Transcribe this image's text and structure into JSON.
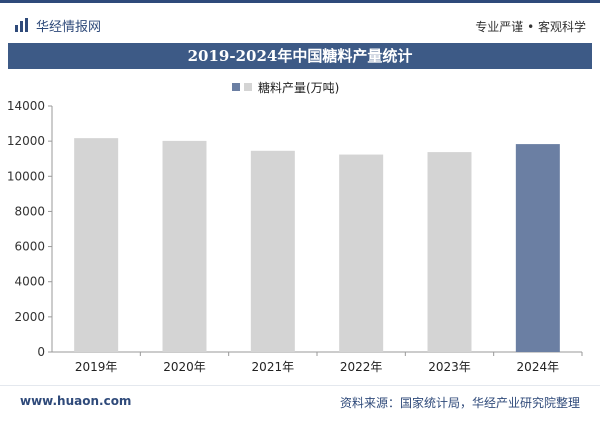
{
  "header": {
    "brand_name": "华经情报网",
    "tagline": "专业严谨 • 客观科学"
  },
  "colors": {
    "brand": "#2f4a7a",
    "bar_default": "#d4d4d4",
    "bar_highlight": "#6b7fa3"
  },
  "chart_data": {
    "type": "bar",
    "title": "2019-2024年中国糖料产量统计",
    "xlabel": "",
    "ylabel": "",
    "categories": [
      "2019年",
      "2020年",
      "2021年",
      "2022年",
      "2023年",
      "2024年"
    ],
    "series": [
      {
        "name": "糖料产量(万吨)",
        "values": [
          12170,
          12014,
          11451,
          11237,
          11376,
          11832
        ]
      }
    ],
    "highlight_index": 5,
    "ylim": [
      0,
      14000
    ],
    "yticks": [
      0,
      2000,
      4000,
      6000,
      8000,
      10000,
      12000,
      14000
    ],
    "ytick_labels": [
      "0",
      "2000",
      "4000",
      "6000",
      "8000",
      "10000",
      "12000",
      "14000"
    ],
    "grid": false,
    "legend_position": "top-center"
  },
  "footer": {
    "url": "www.huaon.com",
    "source": "资料来源：国家统计局，华经产业研究院整理"
  }
}
